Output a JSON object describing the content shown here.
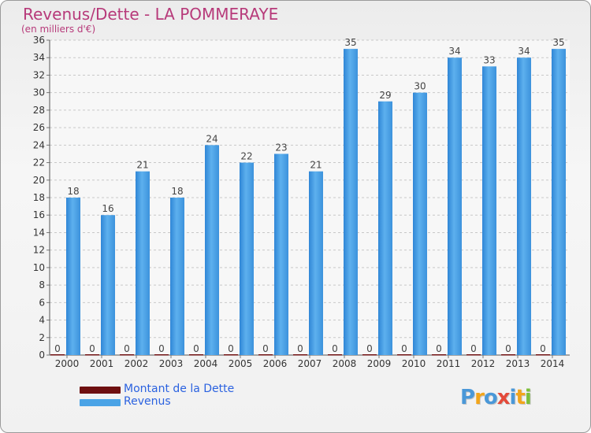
{
  "title": "Revenus/Dette - LA POMMERAYE",
  "subtitle": "(en milliers d'€)",
  "colors": {
    "title": "#b73a7a",
    "dette": "#6e0f10",
    "revenus": "#4aa3e6",
    "legend_text": "#2b62e0"
  },
  "legend": [
    {
      "label": "Montant de la Dette",
      "color": "#6e0f10"
    },
    {
      "label": "Revenus",
      "color": "#4aa3e6"
    }
  ],
  "logo": {
    "text": "Proxiti",
    "letters": [
      {
        "ch": "P",
        "color": "#4a98d8"
      },
      {
        "ch": "r",
        "color": "#f2a51a"
      },
      {
        "ch": "o",
        "color": "#4a98d8"
      },
      {
        "ch": "x",
        "color": "#e44a3a"
      },
      {
        "ch": "i",
        "color": "#4a98d8"
      },
      {
        "ch": "t",
        "color": "#f2a51a"
      },
      {
        "ch": "i",
        "color": "#7bbf3a"
      }
    ]
  },
  "chart_data": {
    "type": "bar",
    "categories": [
      "2000",
      "2001",
      "2002",
      "2003",
      "2004",
      "2005",
      "2006",
      "2007",
      "2008",
      "2009",
      "2010",
      "2011",
      "2012",
      "2013",
      "2014"
    ],
    "series": [
      {
        "name": "Montant de la Dette",
        "color": "#6e0f10",
        "values": [
          0,
          0,
          0,
          0,
          0,
          0,
          0,
          0,
          0,
          0,
          0,
          0,
          0,
          0,
          0
        ]
      },
      {
        "name": "Revenus",
        "color": "#4aa3e6",
        "values": [
          18,
          16,
          21,
          18,
          24,
          22,
          23,
          21,
          35,
          29,
          30,
          34,
          33,
          34,
          35
        ]
      }
    ],
    "ylim": [
      0,
      36
    ],
    "yticks": [
      0,
      2,
      4,
      6,
      8,
      10,
      12,
      14,
      16,
      18,
      20,
      22,
      24,
      26,
      28,
      30,
      32,
      34,
      36
    ],
    "grid": true,
    "legend_position": "bottom-left"
  }
}
